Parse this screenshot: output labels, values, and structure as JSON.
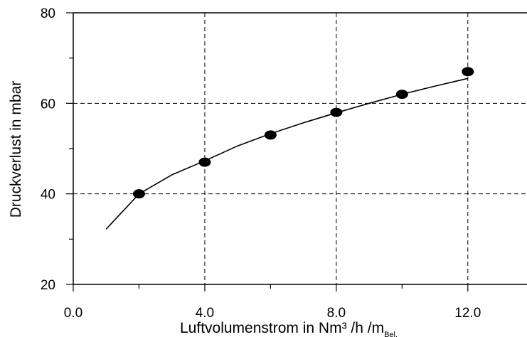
{
  "chart_data": {
    "type": "scatter",
    "title": "",
    "xlabel": "Luftvolumenstrom in Nm³ /h /m",
    "xlabel_subscript": "Bel.",
    "ylabel": "Druckverlust in mbar",
    "xlim": [
      0,
      13.8
    ],
    "ylim": [
      20,
      80
    ],
    "x_ticks": [
      "0.0",
      "4.0",
      "8.0",
      "12.0"
    ],
    "y_ticks": [
      "20",
      "40",
      "60",
      "80"
    ],
    "grid": "dashed",
    "legend": "none",
    "series": [
      {
        "kind": "points",
        "x": [
          2,
          4,
          6,
          8,
          10,
          12
        ],
        "y": [
          40,
          47,
          53,
          58,
          62,
          67
        ]
      },
      {
        "kind": "fit-curve",
        "x": [
          1,
          2,
          3,
          4,
          5,
          6,
          7,
          8,
          9,
          10,
          11,
          12
        ],
        "y": [
          32.2,
          40.0,
          44.2,
          47.3,
          50.6,
          53.3,
          55.7,
          57.9,
          60.0,
          62.0,
          63.8,
          65.5
        ]
      }
    ],
    "colors": {
      "marks": "#000000",
      "grid": "#000000",
      "background": "#ffffff"
    }
  }
}
